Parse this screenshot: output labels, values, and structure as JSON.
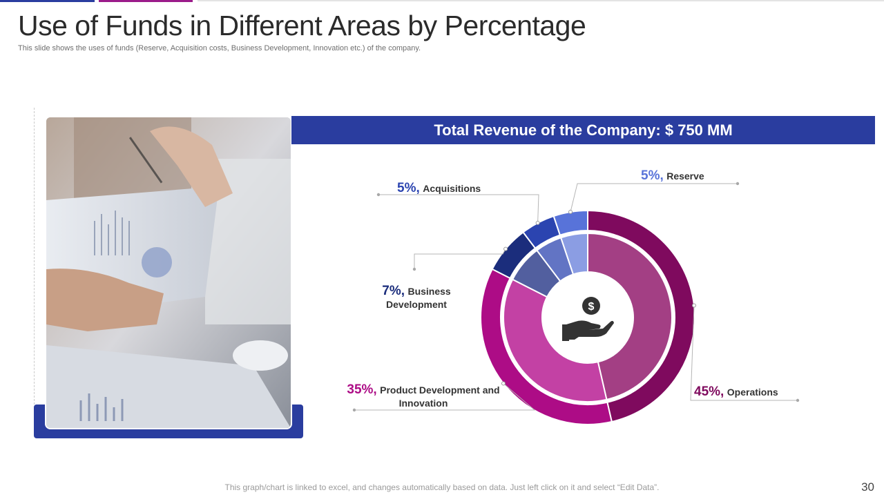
{
  "slide": {
    "title": "Use of Funds in Different Areas by Percentage",
    "subtitle": "This slide shows the uses of funds (Reserve, Acquisition costs, Business Development, Innovation etc.) of the company.",
    "footer": "This graph/chart is linked to excel, and changes automatically based on data. Just left click on it and select “Edit Data”.",
    "page_number": "30"
  },
  "banner": {
    "text": "Total Revenue of the Company: $ 750 MM"
  },
  "center_icon": "hand-holding-dollar-icon",
  "colors": {
    "brand_blue": "#2a3d9f",
    "brand_magenta": "#9b1c8a"
  },
  "labels": {
    "reserve": {
      "pct": "5%,",
      "name": "Reserve"
    },
    "acquisitions": {
      "pct": "5%,",
      "name": "Acquisitions"
    },
    "business_development": {
      "pct": "7%,",
      "name_line1": "Business",
      "name_line2": "Development"
    },
    "product_development": {
      "pct": "35%,",
      "name_line1": "Product Development and",
      "name_line2": "Innovation"
    },
    "operations": {
      "pct": "45%,",
      "name": "Operations"
    }
  },
  "chart_data": {
    "type": "pie",
    "title": "Total Revenue of the Company: $ 750 MM",
    "categories": [
      "Operations",
      "Product Development and Innovation",
      "Business Development",
      "Acquisitions",
      "Reserve"
    ],
    "values": [
      45,
      35,
      7,
      5,
      5
    ],
    "unit": "%",
    "colors": [
      "#7f0a5e",
      "#ad0c86",
      "#1b2d7c",
      "#2b44b0",
      "#5873d9"
    ],
    "inner_colors": [
      "#a33f84",
      "#c341a4",
      "#525f9f",
      "#6274c4",
      "#8b9de3"
    ]
  }
}
